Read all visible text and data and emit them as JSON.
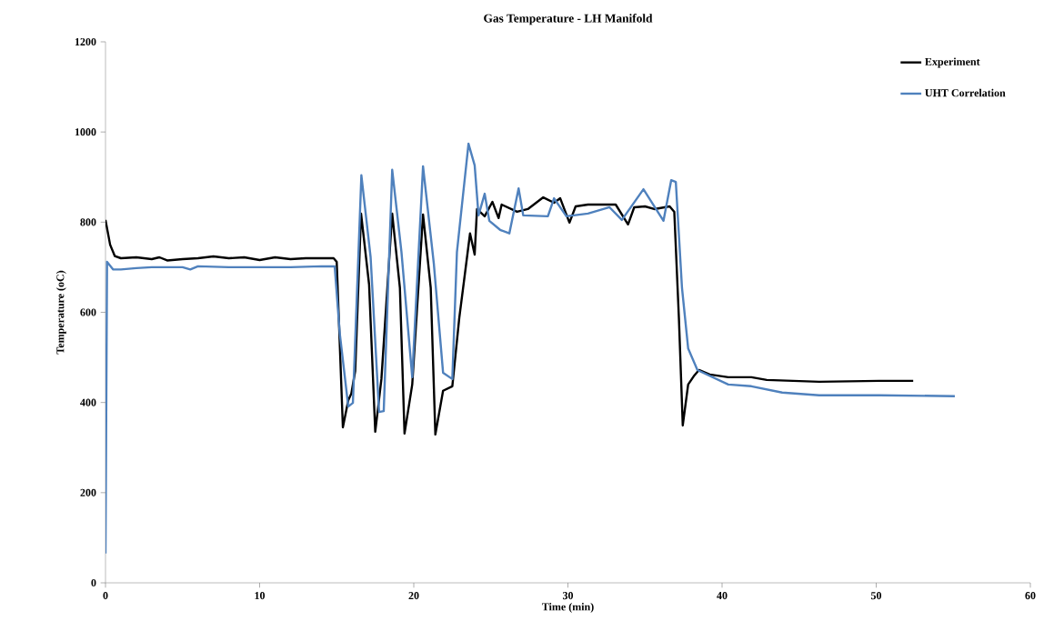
{
  "chart_data": {
    "type": "line",
    "title": "Gas Temperature - LH Manifold",
    "xlabel": "Time (min)",
    "ylabel": "Temperature (oC)",
    "xlim": [
      0,
      60
    ],
    "xticks": [
      0,
      10,
      20,
      30,
      40,
      50,
      60
    ],
    "ylim": [
      0,
      1200
    ],
    "yticks": [
      0,
      200,
      400,
      600,
      800,
      1000,
      1200
    ],
    "grid": false,
    "legend": "top right",
    "series": [
      {
        "name": "Experiment",
        "color": "#000000",
        "x": [
          0,
          0.3,
          0.6,
          1,
          2,
          3,
          3.5,
          4,
          5,
          6,
          7,
          8,
          9,
          10,
          11,
          12,
          13,
          14,
          14.8,
          15,
          15.4,
          15.75,
          15.95,
          16.2,
          16.58,
          17.1,
          17.5,
          17.9,
          18.6,
          19.1,
          19.4,
          19.9,
          20.6,
          21.1,
          21.4,
          21.9,
          22.5,
          22.95,
          23.65,
          23.95,
          24.1,
          24.6,
          25.1,
          25.5,
          25.7,
          26.7,
          27.4,
          28.4,
          29.1,
          29.5,
          30.1,
          30.5,
          31.3,
          32.3,
          33.1,
          33.9,
          34.3,
          35.0,
          35.6,
          36.6,
          36.9,
          37.2,
          37.45,
          37.8,
          38.2,
          38.5,
          39.2,
          40.4,
          41.9,
          42.9,
          46.3,
          50.2,
          52.4
        ],
        "values": [
          805,
          750,
          725,
          720,
          722,
          718,
          722,
          715,
          718,
          720,
          724,
          720,
          722,
          716,
          722,
          718,
          720,
          720,
          720,
          712,
          345,
          405,
          420,
          470,
          819,
          662,
          335,
          452,
          819,
          654,
          331,
          440,
          817,
          654,
          329,
          426,
          436,
          587,
          775,
          728,
          829,
          813,
          845,
          809,
          839,
          823,
          829,
          855,
          843,
          853,
          799,
          835,
          839,
          839,
          839,
          795,
          833,
          835,
          829,
          835,
          823,
          587,
          349,
          440,
          460,
          472,
          462,
          456,
          456,
          450,
          446,
          448,
          448
        ]
      },
      {
        "name": "UHT Correlation",
        "color": "#4f81bd",
        "x": [
          0,
          0.1,
          0.5,
          1,
          2,
          3,
          4,
          5,
          5.5,
          6,
          8,
          10,
          12,
          14,
          14.87,
          15.2,
          15.75,
          16.05,
          16.6,
          17.2,
          17.75,
          18.05,
          18.6,
          19.2,
          19.9,
          20.6,
          21.3,
          21.9,
          22.5,
          22.8,
          23.55,
          23.95,
          24.2,
          24.6,
          24.9,
          25.6,
          26.2,
          26.8,
          27.1,
          28.7,
          29.1,
          29.9,
          31.3,
          32.7,
          33.5,
          34.9,
          36.2,
          36.7,
          37.0,
          37.4,
          37.8,
          38.4,
          40.4,
          41.9,
          43.9,
          46.3,
          50.2,
          55.1
        ],
        "values": [
          65,
          712,
          695,
          695,
          698,
          700,
          700,
          700,
          695,
          702,
          700,
          700,
          700,
          702,
          702,
          553,
          391,
          399,
          904,
          722,
          379,
          381,
          916,
          734,
          456,
          924,
          708,
          466,
          452,
          734,
          974,
          926,
          815,
          863,
          803,
          783,
          775,
          875,
          815,
          813,
          853,
          813,
          819,
          833,
          805,
          873,
          803,
          893,
          889,
          654,
          520,
          472,
          440,
          436,
          422,
          416,
          416,
          414
        ]
      }
    ]
  }
}
